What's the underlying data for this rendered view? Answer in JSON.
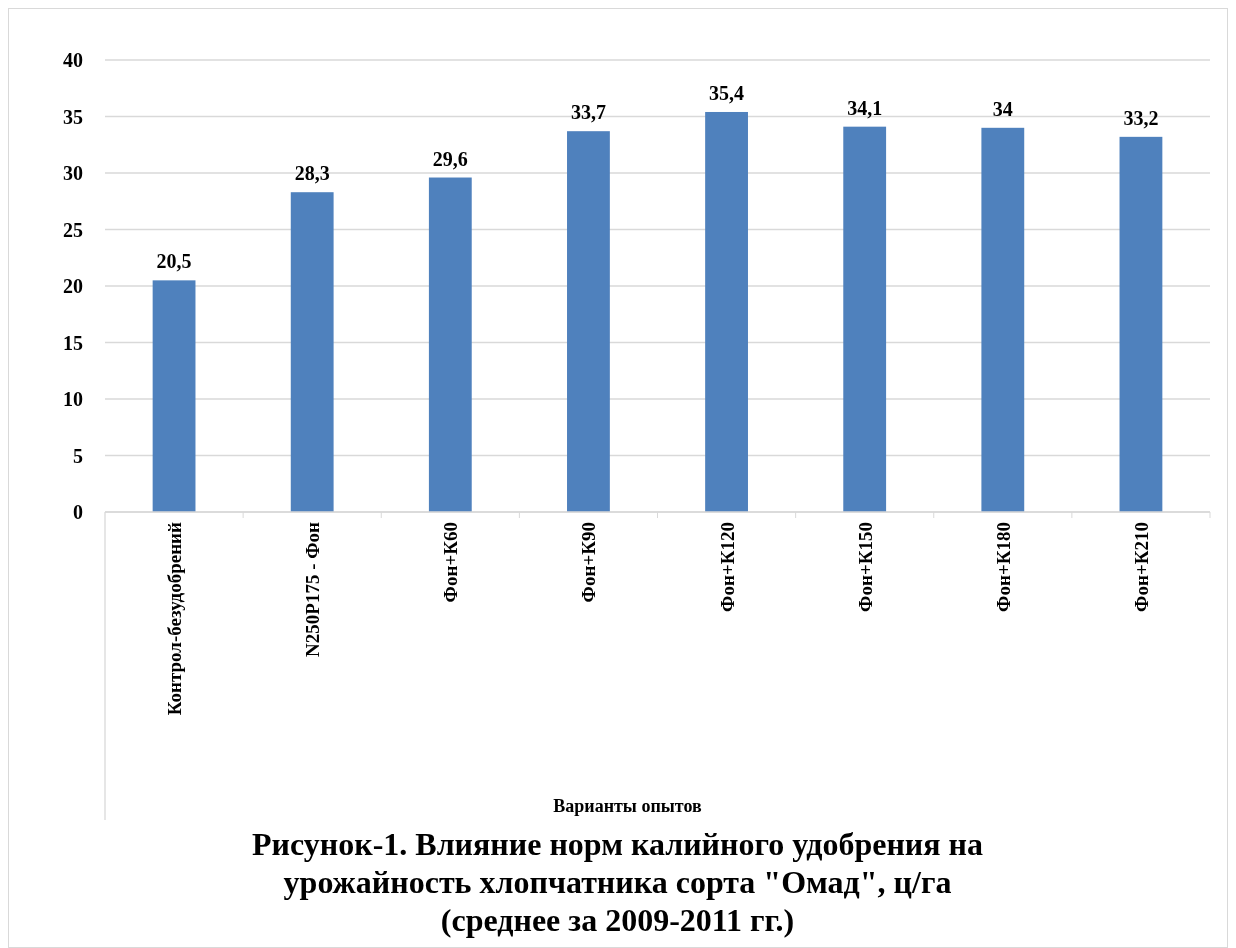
{
  "chart_data": {
    "type": "bar",
    "title": "Рисунок-1. Влияние норм калийного удобрения на урожайность хлопчатника сорта \"Омад\", ц/га (среднее за 2009-2011 гг.)",
    "xlabel": "Варианты опытов",
    "categories": [
      "Контрол-безудобрений",
      "N250P175 - Фон",
      "Фон+К60",
      "Фон+К90",
      "Фон+К120",
      "Фон+К150",
      "Фон+К180",
      "Фон+К210"
    ],
    "values": [
      20.5,
      28.3,
      29.6,
      33.7,
      35.4,
      34.1,
      34,
      33.2
    ],
    "value_labels": [
      "20,5",
      "28,3",
      "29,6",
      "33,7",
      "35,4",
      "34,1",
      "34",
      "33,2"
    ],
    "color": "#4f81bd",
    "ylim": [
      0,
      40
    ],
    "yticks": [
      0,
      5,
      10,
      15,
      20,
      25,
      30,
      35,
      40
    ],
    "grid": "y"
  }
}
